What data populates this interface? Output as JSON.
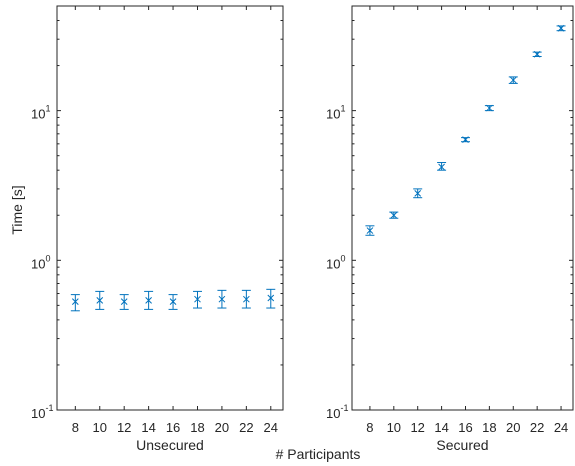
{
  "chart_data": {
    "type": "scatter",
    "ylabel": "Time [s]",
    "xlabel": "# Participants",
    "yscale": "log",
    "ylim": [
      0.1,
      50
    ],
    "y_ticks": [
      {
        "value": 0.1,
        "base": "10",
        "exp": "-1"
      },
      {
        "value": 1,
        "base": "10",
        "exp": "0"
      },
      {
        "value": 10,
        "base": "10",
        "exp": "1"
      }
    ],
    "x_ticks": [
      "8",
      "10",
      "12",
      "14",
      "16",
      "18",
      "20",
      "22",
      "24"
    ],
    "xlim": [
      6.5,
      25
    ],
    "marker_color": "#0072BD",
    "panels": [
      {
        "subtitle": "Unsecured",
        "x": [
          8,
          10,
          12,
          14,
          16,
          18,
          20,
          22,
          24
        ],
        "y": [
          0.53,
          0.54,
          0.53,
          0.54,
          0.53,
          0.55,
          0.55,
          0.55,
          0.56
        ],
        "err_low": [
          0.46,
          0.47,
          0.47,
          0.47,
          0.47,
          0.48,
          0.48,
          0.48,
          0.48
        ],
        "err_high": [
          0.59,
          0.62,
          0.59,
          0.62,
          0.59,
          0.62,
          0.63,
          0.63,
          0.64
        ]
      },
      {
        "subtitle": "Secured",
        "x": [
          8,
          10,
          12,
          14,
          16,
          18,
          20,
          22,
          24
        ],
        "y": [
          1.58,
          2.0,
          2.8,
          4.2,
          6.4,
          10.4,
          16.0,
          23.8,
          35.5
        ],
        "err_low": [
          1.47,
          1.91,
          2.62,
          4.0,
          6.2,
          10.0,
          15.2,
          23.0,
          34.2
        ],
        "err_high": [
          1.7,
          2.1,
          3.0,
          4.5,
          6.6,
          10.8,
          16.8,
          24.6,
          36.8
        ]
      }
    ]
  }
}
